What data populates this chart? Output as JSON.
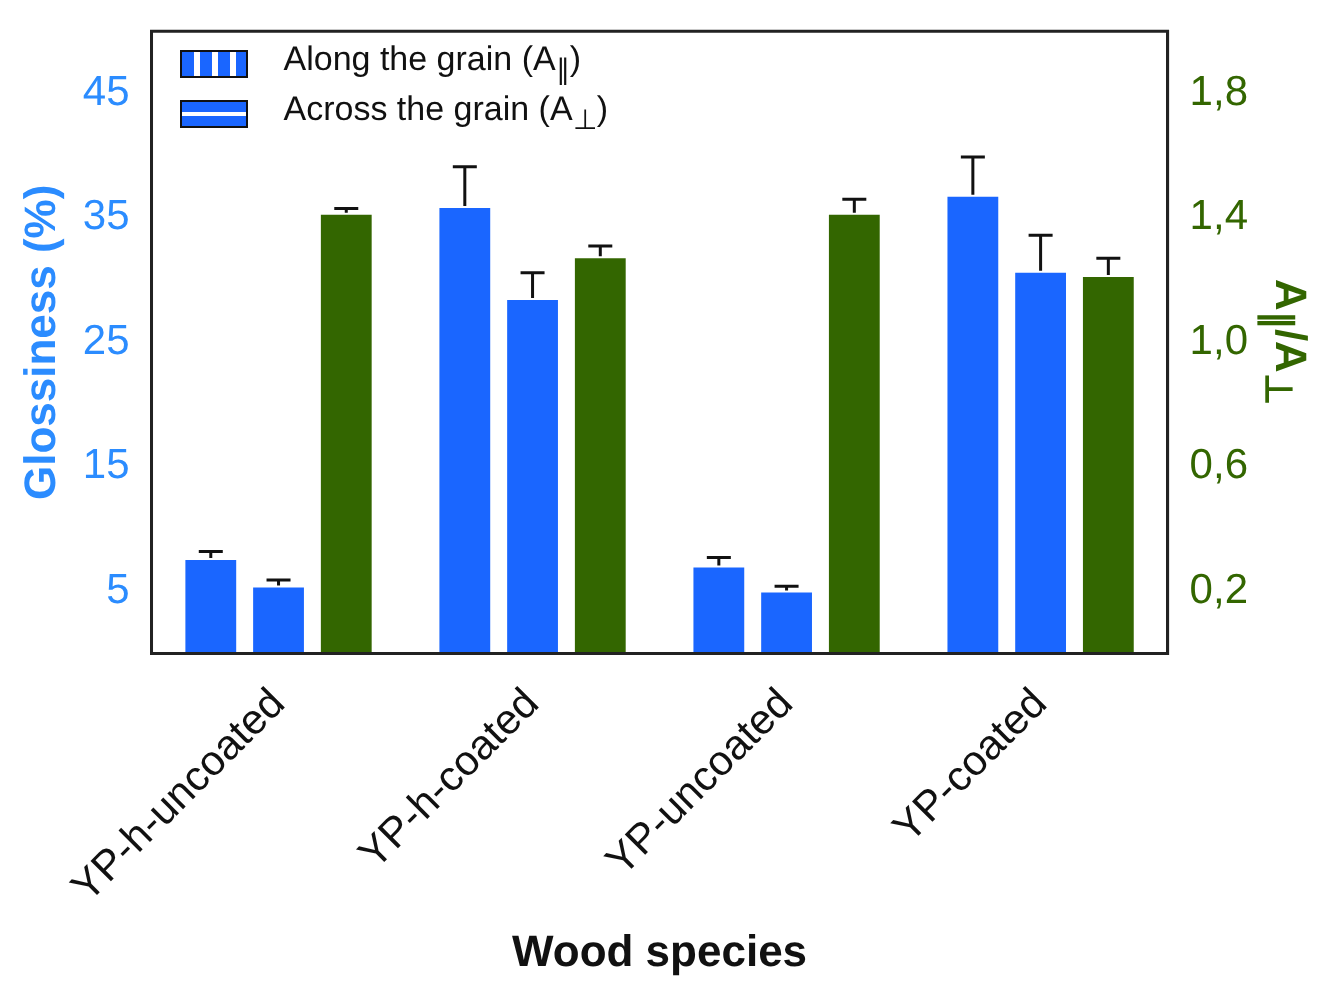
{
  "chart_data": {
    "type": "bar",
    "xlabel": "Wood species",
    "ylabel": "Glossiness (%)",
    "y2label": "A$_{∥}$/A$_{⊥}$",
    "categories": [
      "YP-h-uncoated",
      "YP-h-coated",
      "YP-uncoated",
      "YP-coated"
    ],
    "series": [
      {
        "name": "Along the grain (A$_{∥}$)",
        "color": "#1a66ff",
        "values": [
          7.5,
          35.8,
          6.9,
          36.7
        ],
        "errors": [
          0.7,
          3.3,
          0.8,
          3.2
        ]
      },
      {
        "name": "Across the grain (A$_{⊥}$)",
        "color": "#1a66ff",
        "values": [
          5.3,
          28.4,
          4.9,
          30.6
        ],
        "errors": [
          0.6,
          2.2,
          0.5,
          3.0
        ]
      },
      {
        "color": "#336600",
        "axis": "y2",
        "values": [
          1.41,
          1.27,
          1.41,
          1.21
        ],
        "errors": [
          0.02,
          0.04,
          0.05,
          0.06
        ]
      }
    ],
    "ylim": [
      0,
      50
    ],
    "yticks": [
      5,
      15,
      25,
      35,
      45
    ],
    "y2lim": [
      0,
      2
    ],
    "y2ticks": [
      {
        "value": 0.2,
        "label": "0,2"
      },
      {
        "value": 0.6,
        "label": "0,6"
      },
      {
        "value": 1.0,
        "label": "1,0"
      },
      {
        "value": 1.4,
        "label": "1,4"
      },
      {
        "value": 1.8,
        "label": "1,8"
      }
    ],
    "grid": false,
    "legend": "top left"
  }
}
